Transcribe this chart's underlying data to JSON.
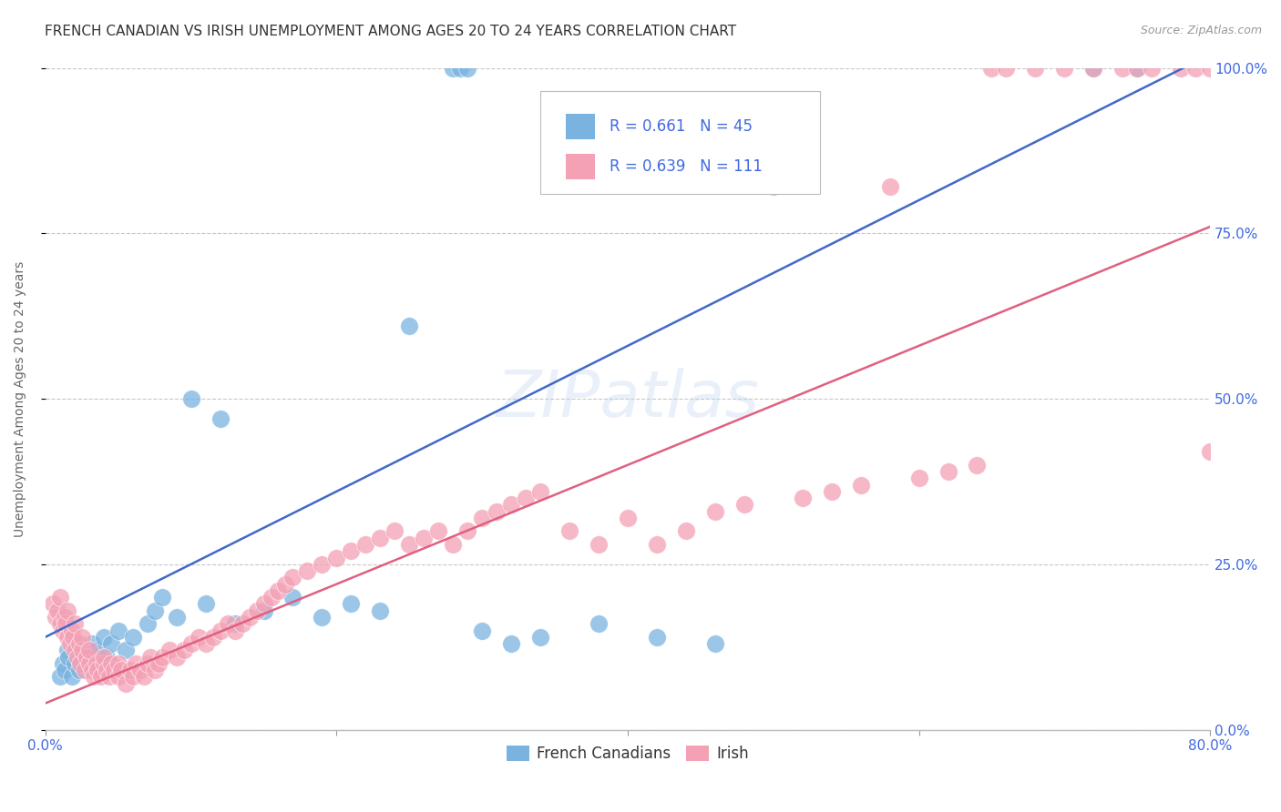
{
  "title": "FRENCH CANADIAN VS IRISH UNEMPLOYMENT AMONG AGES 20 TO 24 YEARS CORRELATION CHART",
  "source": "Source: ZipAtlas.com",
  "ylabel": "Unemployment Among Ages 20 to 24 years",
  "xlim": [
    0.0,
    0.8
  ],
  "ylim": [
    0.0,
    1.0
  ],
  "xticks": [
    0.0,
    0.2,
    0.4,
    0.6,
    0.8
  ],
  "xtick_labels": [
    "0.0%",
    "",
    "",
    "",
    "80.0%"
  ],
  "yticks": [
    0.0,
    0.25,
    0.5,
    0.75,
    1.0
  ],
  "ytick_labels": [
    "0.0%",
    "25.0%",
    "50.0%",
    "75.0%",
    "100.0%"
  ],
  "french_color": "#7ab3e0",
  "irish_color": "#f4a0b5",
  "french_R": 0.661,
  "french_N": 45,
  "irish_R": 0.639,
  "irish_N": 111,
  "french_line_color": "#4169c8",
  "irish_line_color": "#e06080",
  "french_line": {
    "x0": 0.0,
    "y0": 0.14,
    "x1": 0.8,
    "y1": 1.02
  },
  "irish_line": {
    "x0": 0.0,
    "y0": 0.04,
    "x1": 0.8,
    "y1": 0.76
  },
  "watermark": "ZIPatlas",
  "background_color": "#ffffff",
  "grid_color": "#c8c8c8",
  "tick_color": "#4169e1",
  "title_fontsize": 11,
  "axis_label_fontsize": 10,
  "tick_fontsize": 11,
  "legend_fontsize": 12
}
